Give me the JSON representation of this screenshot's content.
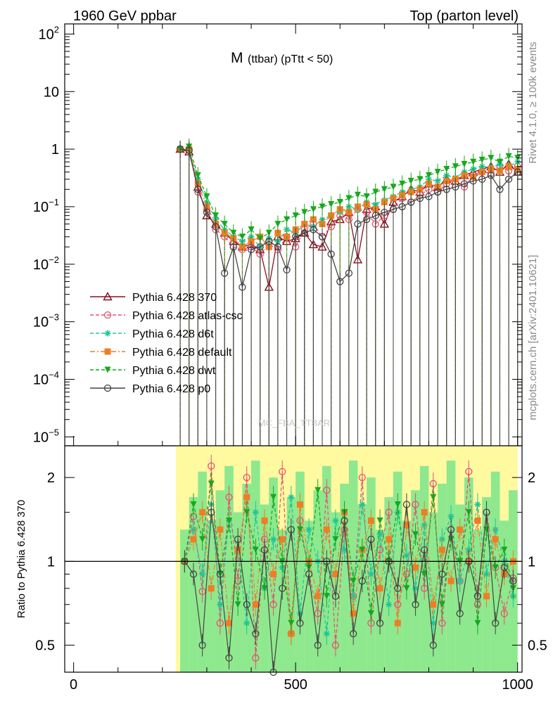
{
  "header": {
    "left": "1960 GeV ppbar",
    "right": "Top (parton level)"
  },
  "plot_title_main": "M",
  "plot_title_sub": "(ttbar) (pTtt < 50)",
  "watermark": "MC_FBA_TTBAR",
  "side_text": {
    "rivet": "Rivet 4.1.0, ≥ 100k events",
    "mcplots": "mcplots.cern.ch [arXiv:2401.10621]"
  },
  "chart_data": [
    {
      "type": "line",
      "panel": "main",
      "title": "M (ttbar) (pTtt < 50)",
      "yscale": "log",
      "ylim": [
        7e-06,
        150
      ],
      "xlim": [
        -20,
        1010
      ],
      "y_ticks": [
        {
          "value": 100,
          "base": "10",
          "exp": "2"
        },
        {
          "value": 10,
          "base": "10",
          "exp": ""
        },
        {
          "value": 1,
          "base": "1",
          "exp": ""
        },
        {
          "value": 0.1,
          "base": "10",
          "exp": "−1"
        },
        {
          "value": 0.01,
          "base": "10",
          "exp": "−2"
        },
        {
          "value": 0.001,
          "base": "10",
          "exp": "−3"
        },
        {
          "value": 0.0001,
          "base": "10",
          "exp": "−4"
        },
        {
          "value": 1e-05,
          "base": "10",
          "exp": "−5"
        }
      ],
      "x": [
        240,
        260,
        280,
        300,
        320,
        340,
        360,
        380,
        400,
        420,
        440,
        460,
        480,
        500,
        520,
        540,
        560,
        580,
        600,
        620,
        640,
        660,
        680,
        700,
        720,
        740,
        760,
        780,
        800,
        820,
        840,
        860,
        880,
        900,
        920,
        940,
        960,
        980,
        1000
      ],
      "series": [
        {
          "name": "Pythia 6.428 370",
          "color": "#8b0d1e",
          "marker": "triangle-open",
          "dash": "solid",
          "values": [
            1.0,
            0.9,
            0.22,
            0.07,
            0.05,
            0.035,
            0.025,
            0.02,
            0.022,
            0.018,
            0.004,
            0.03,
            0.025,
            0.028,
            0.035,
            0.022,
            0.02,
            0.055,
            0.06,
            0.08,
            0.012,
            0.09,
            0.1,
            0.05,
            0.12,
            0.15,
            0.2,
            0.18,
            0.25,
            0.22,
            0.3,
            0.28,
            0.35,
            0.4,
            0.45,
            0.5,
            0.4,
            0.55,
            0.4
          ]
        },
        {
          "name": "Pythia 6.428 atlas-csc",
          "color": "#e8506e",
          "marker": "circle-open",
          "dash": "dashed",
          "values": [
            1.0,
            1.0,
            0.18,
            0.09,
            0.04,
            0.03,
            0.02,
            0.018,
            0.02,
            0.015,
            0.022,
            0.018,
            0.03,
            0.02,
            0.04,
            0.05,
            0.03,
            0.045,
            0.07,
            0.06,
            0.09,
            0.08,
            0.05,
            0.07,
            0.09,
            0.14,
            0.12,
            0.16,
            0.2,
            0.18,
            0.25,
            0.3,
            0.22,
            0.35,
            0.4,
            0.38,
            0.5,
            0.42,
            0.5
          ]
        },
        {
          "name": "Pythia 6.428 d6t",
          "color": "#1fc59a",
          "marker": "star",
          "dash": "dashed",
          "values": [
            1.0,
            0.95,
            0.3,
            0.12,
            0.06,
            0.04,
            0.03,
            0.025,
            0.03,
            0.02,
            0.028,
            0.025,
            0.04,
            0.035,
            0.05,
            0.045,
            0.06,
            0.07,
            0.08,
            0.1,
            0.09,
            0.12,
            0.11,
            0.13,
            0.15,
            0.18,
            0.2,
            0.22,
            0.3,
            0.28,
            0.35,
            0.32,
            0.4,
            0.45,
            0.5,
            0.48,
            0.55,
            0.5,
            0.6
          ]
        },
        {
          "name": "Pythia 6.428 default",
          "color": "#f07d24",
          "marker": "square",
          "dash": "dashdot",
          "values": [
            1.0,
            1.0,
            0.25,
            0.1,
            0.05,
            0.035,
            0.028,
            0.02,
            0.025,
            0.03,
            0.02,
            0.035,
            0.03,
            0.04,
            0.05,
            0.06,
            0.05,
            0.07,
            0.09,
            0.08,
            0.1,
            0.11,
            0.09,
            0.12,
            0.14,
            0.16,
            0.18,
            0.2,
            0.25,
            0.22,
            0.28,
            0.3,
            0.35,
            0.33,
            0.4,
            0.45,
            0.42,
            0.5,
            0.45
          ]
        },
        {
          "name": "Pythia 6.428 dwt",
          "color": "#17a81d",
          "marker": "triangle-down",
          "dash": "dashed",
          "values": [
            1.0,
            1.1,
            0.35,
            0.15,
            0.07,
            0.05,
            0.035,
            0.03,
            0.04,
            0.028,
            0.035,
            0.05,
            0.06,
            0.07,
            0.08,
            0.09,
            0.1,
            0.11,
            0.12,
            0.14,
            0.16,
            0.15,
            0.18,
            0.2,
            0.22,
            0.25,
            0.28,
            0.3,
            0.35,
            0.4,
            0.45,
            0.5,
            0.55,
            0.6,
            0.65,
            0.7,
            0.6,
            0.75,
            0.7
          ]
        },
        {
          "name": "Pythia 6.428 p0",
          "color": "#444444",
          "marker": "circle-open",
          "dash": "solid",
          "values": [
            1.0,
            0.95,
            0.2,
            0.08,
            0.045,
            0.007,
            0.02,
            0.004,
            0.018,
            0.02,
            0.025,
            0.02,
            0.008,
            0.03,
            0.035,
            0.04,
            0.03,
            0.015,
            0.005,
            0.007,
            0.05,
            0.06,
            0.07,
            0.08,
            0.09,
            0.1,
            0.12,
            0.14,
            0.15,
            0.18,
            0.2,
            0.22,
            0.25,
            0.28,
            0.3,
            0.35,
            0.2,
            0.3,
            0.4
          ]
        }
      ]
    },
    {
      "type": "line",
      "panel": "ratio",
      "ylabel": "Ratio to Pythia 6.428 370",
      "yscale": "log",
      "ylim": [
        0.4,
        2.6
      ],
      "y_ticks": [
        {
          "value": 0.5,
          "label": "0.5"
        },
        {
          "value": 1,
          "label": "1"
        },
        {
          "value": 2,
          "label": "2"
        }
      ],
      "xlim": [
        -20,
        1010
      ],
      "x_ticks": [
        {
          "value": 0,
          "label": "0"
        },
        {
          "value": 500,
          "label": "500"
        },
        {
          "value": 1000,
          "label": "1000"
        }
      ],
      "band_xrange": [
        230,
        1000
      ],
      "x": [
        250,
        270,
        290,
        310,
        330,
        350,
        370,
        390,
        410,
        430,
        450,
        470,
        490,
        510,
        530,
        550,
        570,
        590,
        610,
        630,
        650,
        670,
        690,
        710,
        730,
        750,
        770,
        790,
        810,
        830,
        850,
        870,
        890,
        910,
        930,
        950,
        970,
        990
      ],
      "series": [
        {
          "name": "Pythia 6.428 atlas-csc",
          "color": "#e8506e",
          "marker": "circle-open",
          "dash": "dashed",
          "values": [
            1.0,
            1.45,
            0.78,
            2.2,
            0.6,
            1.7,
            0.85,
            2.0,
            0.45,
            1.2,
            0.7,
            2.1,
            0.55,
            1.4,
            0.9,
            0.65,
            1.8,
            0.5,
            1.3,
            0.75,
            2.0,
            0.6,
            1.1,
            1.5,
            0.7,
            0.9,
            1.6,
            0.8,
            1.9,
            0.6,
            1.3,
            0.85,
            2.1,
            0.7,
            1.5,
            0.95,
            0.65,
            0.87
          ]
        },
        {
          "name": "Pythia 6.428 d6t",
          "color": "#1fc59a",
          "marker": "star",
          "dash": "dashed",
          "values": [
            1.0,
            1.3,
            0.9,
            1.6,
            0.7,
            1.4,
            1.1,
            0.6,
            1.5,
            0.8,
            1.2,
            0.95,
            1.7,
            0.65,
            1.3,
            1.0,
            0.55,
            1.4,
            1.1,
            0.75,
            1.6,
            0.9,
            1.25,
            0.7,
            1.5,
            1.05,
            0.8,
            1.35,
            0.6,
            1.2,
            1.45,
            0.85,
            1.1,
            1.6,
            0.9,
            1.3,
            1.0,
            0.75
          ]
        },
        {
          "name": "Pythia 6.428 default",
          "color": "#f07d24",
          "marker": "square",
          "dash": "dashdot",
          "values": [
            1.0,
            1.2,
            1.5,
            0.8,
            1.3,
            0.6,
            1.1,
            1.7,
            0.7,
            1.4,
            0.9,
            1.2,
            0.55,
            1.6,
            1.0,
            0.75,
            1.3,
            0.9,
            1.5,
            0.65,
            1.1,
            1.4,
            0.8,
            1.2,
            0.6,
            1.35,
            0.95,
            1.5,
            0.7,
            1.1,
            0.85,
            1.3,
            1.0,
            1.4,
            0.75,
            1.2,
            0.9,
            1.0
          ]
        },
        {
          "name": "Pythia 6.428 dwt",
          "color": "#17a81d",
          "marker": "triangle-down",
          "dash": "dashed",
          "values": [
            1.0,
            1.6,
            1.2,
            1.9,
            0.9,
            1.4,
            0.7,
            1.5,
            1.1,
            0.8,
            1.7,
            1.0,
            0.6,
            1.3,
            0.95,
            1.8,
            0.75,
            1.2,
            1.5,
            0.85,
            1.1,
            0.65,
            1.4,
            1.0,
            1.6,
            0.8,
            1.25,
            0.9,
            1.7,
            0.7,
            1.2,
            1.0,
            1.5,
            0.6,
            1.3,
            0.95,
            1.1,
            0.8
          ]
        },
        {
          "name": "Pythia 6.428 p0",
          "color": "#444444",
          "marker": "circle-open",
          "dash": "solid",
          "values": [
            1.0,
            0.9,
            0.5,
            1.5,
            0.9,
            0.45,
            1.2,
            0.7,
            0.55,
            1.1,
            0.4,
            0.8,
            1.3,
            0.6,
            0.9,
            0.5,
            1.0,
            0.75,
            1.4,
            0.55,
            0.85,
            1.2,
            0.6,
            1.0,
            0.8,
            1.6,
            0.7,
            1.1,
            0.5,
            0.9,
            1.3,
            0.65,
            1.0,
            0.75,
            1.5,
            0.6,
            0.95,
            0.85
          ]
        }
      ]
    }
  ]
}
